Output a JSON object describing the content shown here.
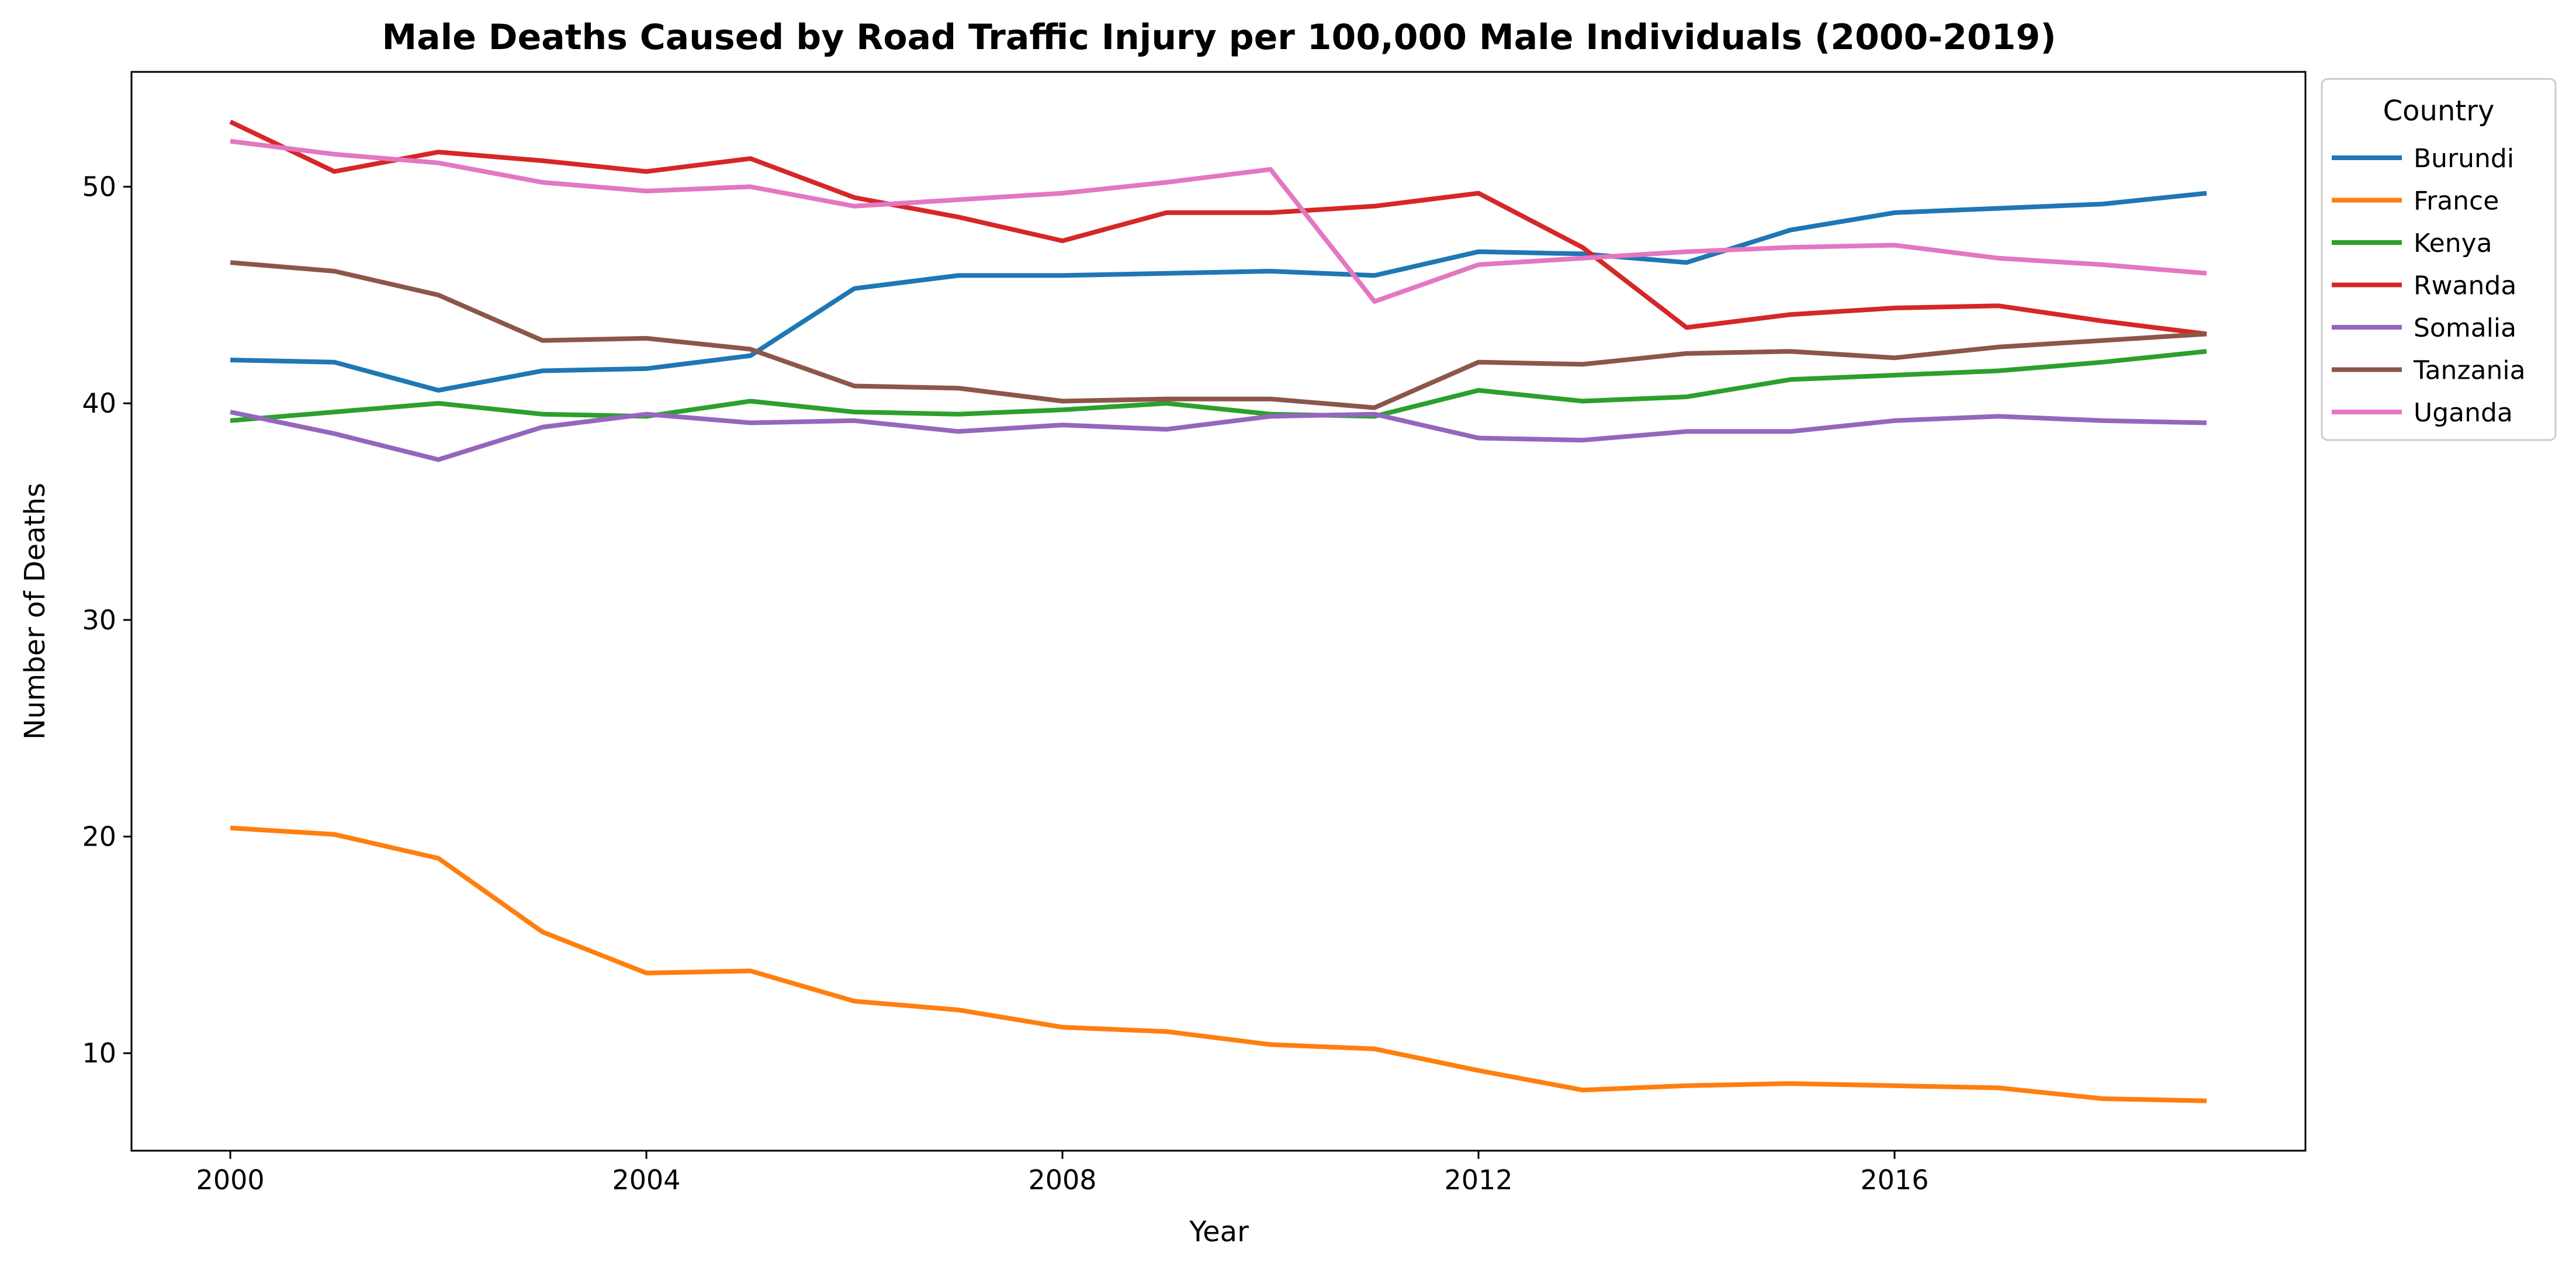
{
  "chart_data": {
    "type": "line",
    "title": "Male Deaths Caused by Road Traffic Injury per 100,000 Male Individuals (2000-2019)",
    "xlabel": "Year",
    "ylabel": "Number of Deaths",
    "x": [
      2000,
      2001,
      2002,
      2003,
      2004,
      2005,
      2006,
      2007,
      2008,
      2009,
      2010,
      2011,
      2012,
      2013,
      2014,
      2015,
      2016,
      2017,
      2018,
      2019
    ],
    "xticks": [
      2000,
      2004,
      2008,
      2012,
      2016
    ],
    "yticks": [
      10,
      20,
      30,
      40,
      50
    ],
    "xlim": [
      1999.05,
      2019.95
    ],
    "ylim": [
      5.5,
      55.3
    ],
    "grid": false,
    "legend": {
      "title": "Country",
      "position": "outside-top-right"
    },
    "series": [
      {
        "name": "Burundi",
        "color": "#1f77b4",
        "values": [
          42.0,
          41.9,
          40.6,
          41.5,
          41.6,
          42.2,
          45.3,
          45.9,
          45.9,
          46.0,
          46.1,
          45.9,
          47.0,
          46.9,
          46.5,
          48.0,
          48.8,
          49.0,
          49.2,
          49.7
        ]
      },
      {
        "name": "France",
        "color": "#ff7f0e",
        "values": [
          20.4,
          20.1,
          19.0,
          15.6,
          13.7,
          13.8,
          12.4,
          12.0,
          11.2,
          11.0,
          10.4,
          10.2,
          9.2,
          8.3,
          8.5,
          8.6,
          8.5,
          8.4,
          7.9,
          7.8
        ]
      },
      {
        "name": "Kenya",
        "color": "#2ca02c",
        "values": [
          39.2,
          39.6,
          40.0,
          39.5,
          39.4,
          40.1,
          39.6,
          39.5,
          39.7,
          40.0,
          39.5,
          39.4,
          40.6,
          40.1,
          40.3,
          41.1,
          41.3,
          41.5,
          41.9,
          42.4
        ]
      },
      {
        "name": "Rwanda",
        "color": "#d62728",
        "values": [
          53.0,
          50.7,
          51.6,
          51.2,
          50.7,
          51.3,
          49.5,
          48.6,
          47.5,
          48.8,
          48.8,
          49.1,
          49.7,
          47.2,
          43.5,
          44.1,
          44.4,
          44.5,
          43.8,
          43.2
        ]
      },
      {
        "name": "Somalia",
        "color": "#9467bd",
        "values": [
          39.6,
          38.6,
          37.4,
          38.9,
          39.5,
          39.1,
          39.2,
          38.7,
          39.0,
          38.8,
          39.4,
          39.5,
          38.4,
          38.3,
          38.7,
          38.7,
          39.2,
          39.4,
          39.2,
          39.1
        ]
      },
      {
        "name": "Tanzania",
        "color": "#8c564b",
        "values": [
          46.5,
          46.1,
          45.0,
          42.9,
          43.0,
          42.5,
          40.8,
          40.7,
          40.1,
          40.2,
          40.2,
          39.8,
          41.9,
          41.8,
          42.3,
          42.4,
          42.1,
          42.6,
          42.9,
          43.2
        ]
      },
      {
        "name": "Uganda",
        "color": "#e377c2",
        "values": [
          52.1,
          51.5,
          51.1,
          50.2,
          49.8,
          50.0,
          49.1,
          49.4,
          49.7,
          50.2,
          50.8,
          44.7,
          46.4,
          46.7,
          47.0,
          47.2,
          47.3,
          46.7,
          46.4,
          46.0
        ]
      }
    ]
  }
}
